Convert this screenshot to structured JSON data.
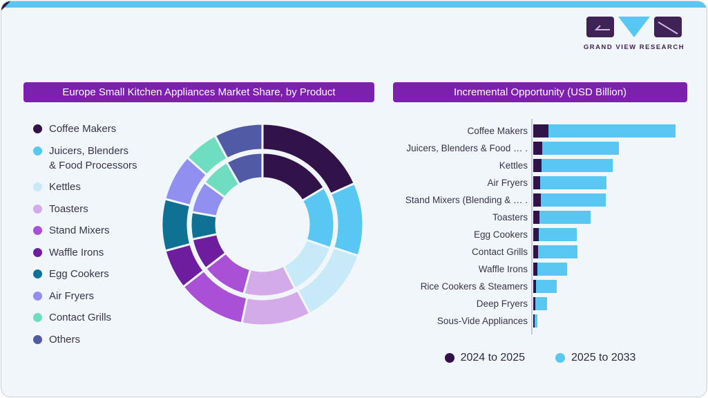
{
  "page": {
    "card_bg": "#f0f6fa",
    "border_color": "#c9d0d9",
    "top_accent_color": "#58c7f2",
    "corner_notch_color": "#2e1b40"
  },
  "logo": {
    "text": "GRAND VIEW RESEARCH",
    "dark_color": "#3f2356",
    "blue_color": "#58c7f2"
  },
  "left_panel": {
    "title": "Europe Small Kitchen Appliances Market Share, by Product",
    "title_bg": "#7c21ad",
    "legend": [
      {
        "label": "Coffee Makers",
        "color": "#321349"
      },
      {
        "label": "Juicers, Blenders\n& Food Processors",
        "color": "#58c7f2"
      },
      {
        "label": "Kettles",
        "color": "#c7e9f8"
      },
      {
        "label": "Toasters",
        "color": "#d4abe9"
      },
      {
        "label": "Stand Mixers",
        "color": "#a950d6"
      },
      {
        "label": "Waffle Irons",
        "color": "#6e1d9f"
      },
      {
        "label": "Egg Cookers",
        "color": "#0f7193"
      },
      {
        "label": "Air Fryers",
        "color": "#9190f0"
      },
      {
        "label": "Contact Grills",
        "color": "#6fdec0"
      },
      {
        "label": "Others",
        "color": "#515aa5"
      }
    ]
  },
  "right_panel": {
    "title": "Incremental Opportunity (USD Billion)",
    "title_bg": "#7c21ad",
    "legend": [
      {
        "label": "2024 to 2025",
        "color": "#321349"
      },
      {
        "label": "2025 to 2033",
        "color": "#58c7f2"
      }
    ]
  },
  "chart_data": [
    {
      "type": "pie",
      "variant": "double-ring-donut",
      "title": "Europe Small Kitchen Appliances Market Share, by Product",
      "categories": [
        "Coffee Makers",
        "Juicers, Blenders & Food Processors",
        "Kettles",
        "Toasters",
        "Stand Mixers",
        "Waffle Irons",
        "Egg Cookers",
        "Air Fryers",
        "Contact Grills",
        "Others"
      ],
      "colors": [
        "#321349",
        "#58c7f2",
        "#c7e9f8",
        "#d4abe9",
        "#a950d6",
        "#6e1d9f",
        "#0f7193",
        "#9190f0",
        "#6fdec0",
        "#515aa5"
      ],
      "series": [
        {
          "name": "outer-ring",
          "shares_pct": [
            18.3,
            11.7,
            12.2,
            11.1,
            11.1,
            6.4,
            8.3,
            7.5,
            5.6,
            7.8
          ]
        },
        {
          "name": "inner-ring",
          "shares_pct": [
            16.4,
            13.9,
            12.2,
            11.7,
            10.3,
            7.2,
            6.1,
            7.2,
            6.7,
            8.3
          ]
        }
      ],
      "start_angle_deg": 0,
      "direction": "clockwise",
      "rings": {
        "outer_radii": [
          108,
          146
        ],
        "inner_radii": [
          67,
          104
        ]
      },
      "legend_position": "left"
    },
    {
      "type": "bar",
      "orientation": "horizontal",
      "stacked": true,
      "title": "Incremental Opportunity (USD Billion)",
      "note": "No numeric axis shown in source; values are relative units estimated from bar lengths.",
      "categories": [
        "Coffee Makers",
        "Juicers, Blenders & Food … .",
        "Kettles",
        "Air Fryers",
        "Stand Mixers (Blending & … .",
        "Toasters",
        "Egg Cookers",
        "Contact Grills",
        "Waffle Irons",
        "Rice Cookers & Steamers",
        "Deep Fryers",
        "Sous-Vide Appliances"
      ],
      "series": [
        {
          "name": "2024 to 2025",
          "color": "#321349",
          "values": [
            22,
            13,
            12,
            10,
            11,
            9,
            8,
            7,
            6,
            4,
            3,
            1.5
          ]
        },
        {
          "name": "2025 to 2033",
          "color": "#58c7f2",
          "values": [
            184,
            111,
            103,
            96,
            94,
            74,
            55,
            57,
            43,
            30,
            17,
            4.5
          ]
        }
      ],
      "xlim": [
        0,
        210
      ],
      "grid": false,
      "legend_position": "bottom"
    }
  ]
}
